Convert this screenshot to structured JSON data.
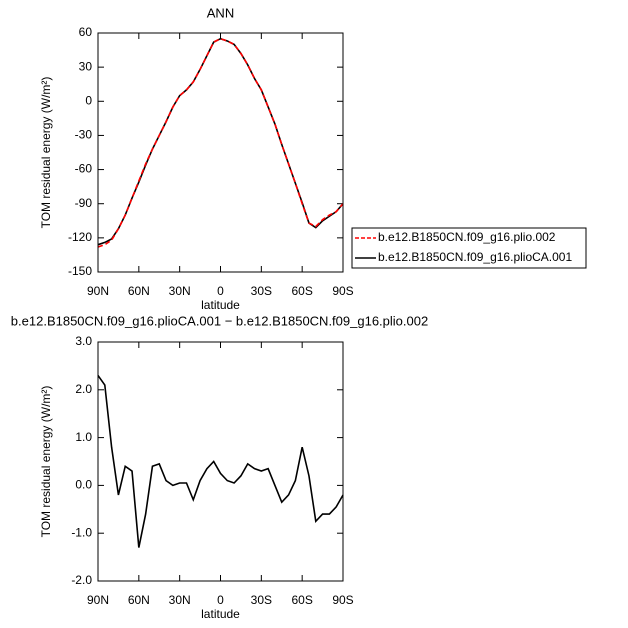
{
  "chart_data": [
    {
      "type": "line",
      "title": "ANN",
      "xlabel": "latitude",
      "ylabel": "TOM residual energy (W/m²)",
      "x": [
        90,
        85,
        80,
        75,
        70,
        65,
        60,
        55,
        50,
        45,
        40,
        35,
        30,
        25,
        20,
        15,
        10,
        5,
        0,
        -5,
        -10,
        -15,
        -20,
        -25,
        -30,
        -35,
        -40,
        -45,
        -50,
        -55,
        -60,
        -65,
        -70,
        -75,
        -80,
        -85,
        -90
      ],
      "xlim": [
        90,
        -90
      ],
      "xticks": [
        {
          "value": 90,
          "label": "90N"
        },
        {
          "value": 60,
          "label": "60N"
        },
        {
          "value": 30,
          "label": "30N"
        },
        0,
        {
          "value": -30,
          "label": "30S"
        },
        {
          "value": -60,
          "label": "60S"
        },
        {
          "value": -90,
          "label": "90S"
        }
      ],
      "ylim": [
        -150,
        60
      ],
      "yticks": [
        60,
        30,
        0,
        -30,
        -60,
        -90,
        -120,
        -150
      ],
      "legend": "right",
      "series": [
        {
          "name": "b.e12.B1850CN.f09_g16.plio.002",
          "color": "#ff0000",
          "dashed": true,
          "values": [
            -128,
            -126,
            -122,
            -112,
            -100,
            -85,
            -70,
            -55,
            -42,
            -30,
            -18,
            -5,
            5,
            10,
            17,
            28,
            40,
            52,
            55,
            53,
            50,
            42,
            32,
            20,
            10,
            -5,
            -20,
            -38,
            -55,
            -72,
            -90,
            -107,
            -110,
            -104,
            -100,
            -97,
            -90
          ]
        },
        {
          "name": "b.e12.B1850CN.f09_g16.plioCA.001",
          "color": "#000000",
          "dashed": false,
          "values": [
            -126,
            -124,
            -121,
            -112,
            -100,
            -85,
            -71,
            -56,
            -42,
            -30,
            -18,
            -5,
            5,
            10,
            17,
            28,
            40,
            52,
            55,
            53,
            50,
            42,
            32,
            20,
            10,
            -5,
            -20,
            -38,
            -55,
            -72,
            -89,
            -107,
            -111,
            -105,
            -101,
            -97,
            -90
          ]
        }
      ]
    },
    {
      "type": "line",
      "title": "b.e12.B1850CN.f09_g16.plioCA.001 − b.e12.B1850CN.f09_g16.plio.002",
      "xlabel": "latitude",
      "ylabel": "TOM residual energy (W/m²)",
      "x": [
        90,
        85,
        80,
        75,
        70,
        65,
        60,
        55,
        50,
        45,
        40,
        35,
        30,
        25,
        20,
        15,
        10,
        5,
        0,
        -5,
        -10,
        -15,
        -20,
        -25,
        -30,
        -35,
        -40,
        -45,
        -50,
        -55,
        -60,
        -65,
        -70,
        -75,
        -80,
        -85,
        -90
      ],
      "xlim": [
        90,
        -90
      ],
      "xticks": [
        {
          "value": 90,
          "label": "90N"
        },
        {
          "value": 60,
          "label": "60N"
        },
        {
          "value": 30,
          "label": "30N"
        },
        0,
        {
          "value": -30,
          "label": "30S"
        },
        {
          "value": -60,
          "label": "60S"
        },
        {
          "value": -90,
          "label": "90S"
        }
      ],
      "ylim": [
        -2,
        3
      ],
      "yticks": [
        {
          "value": 3,
          "label": "3.0"
        },
        {
          "value": 2,
          "label": "2.0"
        },
        {
          "value": 1,
          "label": "1.0"
        },
        {
          "value": 0,
          "label": "0.0"
        },
        {
          "value": -1,
          "label": "-1.0"
        },
        {
          "value": -2,
          "label": "-2.0"
        }
      ],
      "series": [
        {
          "color": "#000000",
          "dashed": false,
          "values": [
            2.3,
            2.1,
            0.8,
            -0.2,
            0.4,
            0.3,
            -1.3,
            -0.6,
            0.4,
            0.45,
            0.1,
            0.0,
            0.05,
            0.05,
            -0.3,
            0.1,
            0.35,
            0.5,
            0.25,
            0.1,
            0.05,
            0.2,
            0.45,
            0.35,
            0.3,
            0.35,
            0.0,
            -0.35,
            -0.2,
            0.1,
            0.8,
            0.2,
            -0.75,
            -0.6,
            -0.6,
            -0.45,
            -0.2
          ]
        }
      ]
    }
  ]
}
